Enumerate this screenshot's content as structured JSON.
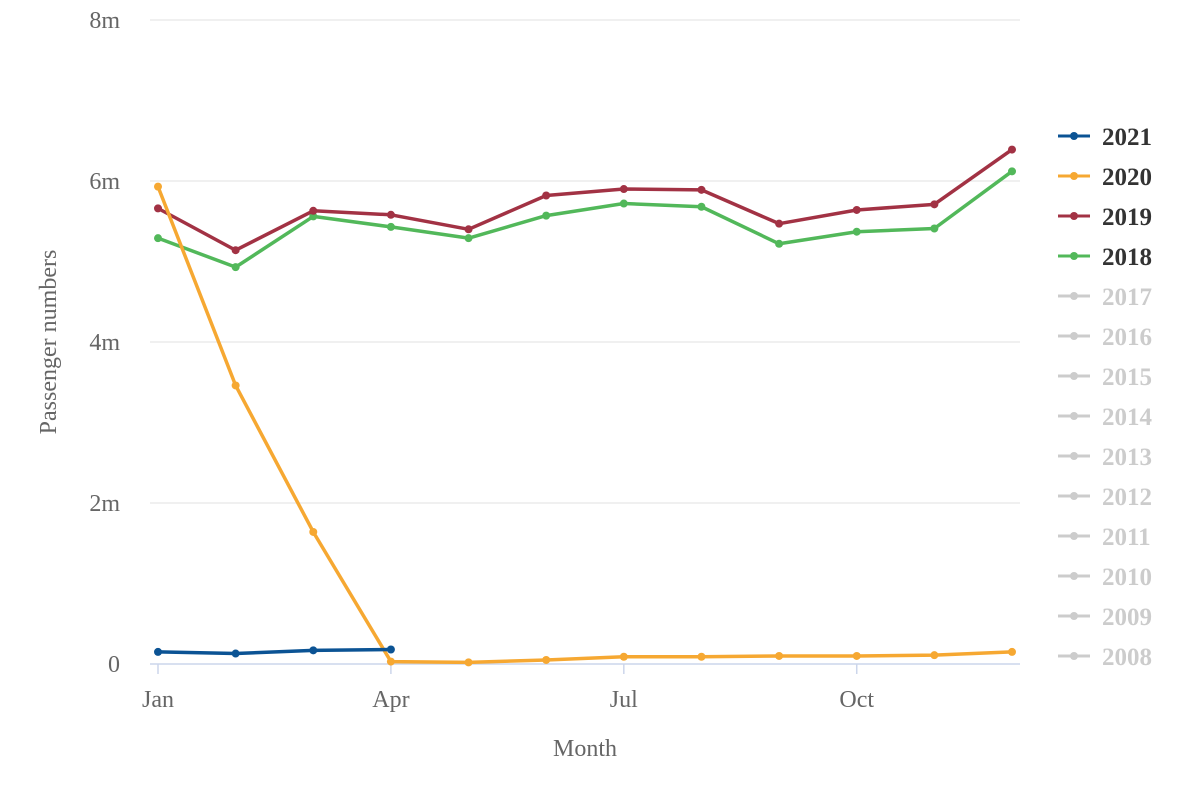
{
  "chart_data": {
    "type": "line",
    "title": "",
    "xlabel": "Month",
    "ylabel": "Passenger numbers",
    "x_ticks": [
      {
        "label": "Jan",
        "month_index": 0
      },
      {
        "label": "Apr",
        "month_index": 3
      },
      {
        "label": "Jul",
        "month_index": 6
      },
      {
        "label": "Oct",
        "month_index": 9
      }
    ],
    "y_ticks": [
      {
        "label": "0",
        "value": 0
      },
      {
        "label": "2m",
        "value": 2000000
      },
      {
        "label": "4m",
        "value": 4000000
      },
      {
        "label": "6m",
        "value": 6000000
      },
      {
        "label": "8m",
        "value": 8000000
      }
    ],
    "xlim": [
      0,
      11
    ],
    "ylim": [
      0,
      8000000
    ],
    "grid": true,
    "legend_position": "right",
    "series": [
      {
        "name": "2021",
        "color": "#0b5394",
        "active": true,
        "values": [
          150000,
          130000,
          170000,
          180000
        ]
      },
      {
        "name": "2020",
        "color": "#f6a832",
        "active": true,
        "values": [
          5930000,
          3460000,
          1640000,
          30000,
          20000,
          50000,
          90000,
          90000,
          100000,
          100000,
          110000,
          150000
        ]
      },
      {
        "name": "2019",
        "color": "#a23244",
        "active": true,
        "values": [
          5660000,
          5140000,
          5630000,
          5580000,
          5400000,
          5820000,
          5900000,
          5890000,
          5470000,
          5640000,
          5710000,
          6390000
        ]
      },
      {
        "name": "2018",
        "color": "#52b85a",
        "active": true,
        "values": [
          5290000,
          4930000,
          5560000,
          5430000,
          5290000,
          5570000,
          5720000,
          5680000,
          5220000,
          5370000,
          5410000,
          6120000
        ]
      },
      {
        "name": "2017",
        "color": "#cccccc",
        "active": false,
        "values": []
      },
      {
        "name": "2016",
        "color": "#cccccc",
        "active": false,
        "values": []
      },
      {
        "name": "2015",
        "color": "#cccccc",
        "active": false,
        "values": []
      },
      {
        "name": "2014",
        "color": "#cccccc",
        "active": false,
        "values": []
      },
      {
        "name": "2013",
        "color": "#cccccc",
        "active": false,
        "values": []
      },
      {
        "name": "2012",
        "color": "#cccccc",
        "active": false,
        "values": []
      },
      {
        "name": "2011",
        "color": "#cccccc",
        "active": false,
        "values": []
      },
      {
        "name": "2010",
        "color": "#cccccc",
        "active": false,
        "values": []
      },
      {
        "name": "2009",
        "color": "#cccccc",
        "active": false,
        "values": []
      },
      {
        "name": "2008",
        "color": "#cccccc",
        "active": false,
        "values": []
      }
    ]
  },
  "colors": {
    "grid": "#e6e6e6",
    "axis": "#ccd6eb",
    "axis_text": "#666666",
    "legend_active_text": "#333333",
    "legend_inactive_text": "#cccccc"
  }
}
